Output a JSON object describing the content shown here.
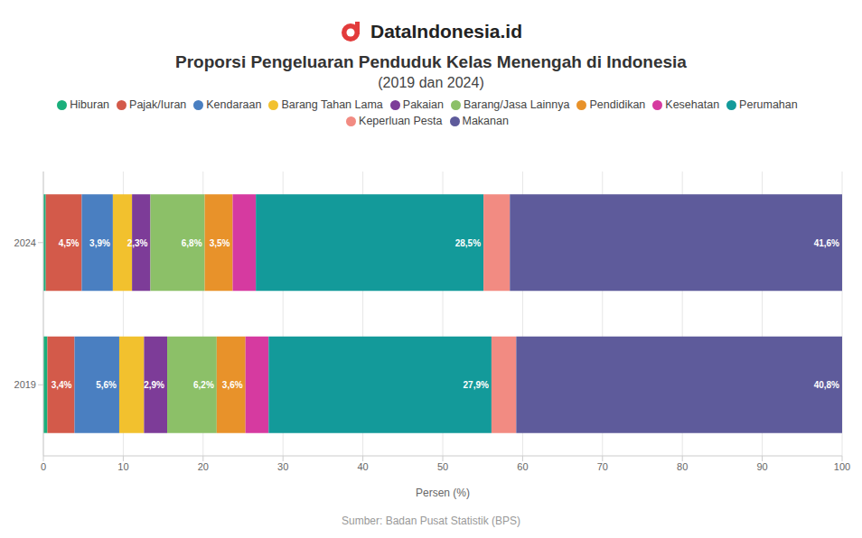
{
  "brand": "DataIndonesia.id",
  "chart_data": {
    "type": "bar",
    "orientation": "horizontal",
    "stacked": true,
    "title": "Proporsi Pengeluaran Penduduk Kelas Menengah di Indonesia",
    "subtitle": "(2019 dan 2024)",
    "x_label": "Persen (%)",
    "source": "Sumber: Badan Pusat Statistik (BPS)",
    "categories": [
      "2024",
      "2019"
    ],
    "xlim": [
      0,
      100
    ],
    "xticks": [
      0,
      10,
      20,
      30,
      40,
      50,
      60,
      70,
      80,
      90,
      100
    ],
    "grid": true,
    "legend": "top",
    "data_labels": true,
    "series": [
      {
        "name": "Hiburan",
        "color": "#1aaf7b",
        "values": [
          0.3,
          0.5
        ],
        "value_labels": [
          null,
          null
        ]
      },
      {
        "name": "Pajak/Iuran",
        "color": "#d35a4a",
        "values": [
          4.5,
          3.4
        ],
        "value_labels": [
          "4,5%",
          "3,4%"
        ]
      },
      {
        "name": "Kendaraan",
        "color": "#4a7fc1",
        "values": [
          3.9,
          5.6
        ],
        "value_labels": [
          "3,9%",
          "5,6%"
        ]
      },
      {
        "name": "Barang Tahan Lama",
        "color": "#f2c12e",
        "values": [
          2.4,
          3.1
        ],
        "value_labels": [
          null,
          null
        ]
      },
      {
        "name": "Pakaian",
        "color": "#7d3c98",
        "values": [
          2.3,
          2.9
        ],
        "value_labels": [
          "2,3%",
          "2,9%"
        ]
      },
      {
        "name": "Barang/Jasa Lainnya",
        "color": "#8cc068",
        "values": [
          6.8,
          6.2
        ],
        "value_labels": [
          "6,8%",
          "6,2%"
        ]
      },
      {
        "name": "Pendidikan",
        "color": "#e8922a",
        "values": [
          3.5,
          3.6
        ],
        "value_labels": [
          "3,5%",
          "3,6%"
        ]
      },
      {
        "name": "Kesehatan",
        "color": "#d63aa0",
        "values": [
          2.9,
          2.9
        ],
        "value_labels": [
          null,
          null
        ]
      },
      {
        "name": "Perumahan",
        "color": "#139a9a",
        "values": [
          28.5,
          27.9
        ],
        "value_labels": [
          "28,5%",
          "27,9%"
        ]
      },
      {
        "name": "Keperluan Pesta",
        "color": "#f28b82",
        "values": [
          3.3,
          3.1
        ],
        "value_labels": [
          null,
          null
        ]
      },
      {
        "name": "Makanan",
        "color": "#5e5b9b",
        "values": [
          41.6,
          40.8
        ],
        "value_labels": [
          "41,6%",
          "40,8%"
        ]
      }
    ]
  }
}
